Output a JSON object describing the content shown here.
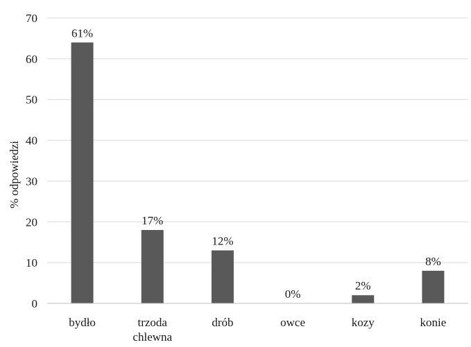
{
  "chart_data": {
    "type": "bar",
    "categories": [
      "bydło",
      [
        "trzoda",
        "chlewna"
      ],
      "drób",
      "owce",
      "kozy",
      "konie"
    ],
    "values": [
      64,
      18,
      13,
      0,
      2,
      8
    ],
    "data_labels": [
      "61%",
      "17%",
      "12%",
      "0%",
      "2%",
      "8%"
    ],
    "ylabel": "% odpowiedzi",
    "xlabel": "",
    "ylim": [
      0,
      70
    ],
    "yticks": [
      0,
      10,
      20,
      30,
      40,
      50,
      60,
      70
    ],
    "grid": true,
    "legend": "none",
    "bar_color": "#595959"
  }
}
